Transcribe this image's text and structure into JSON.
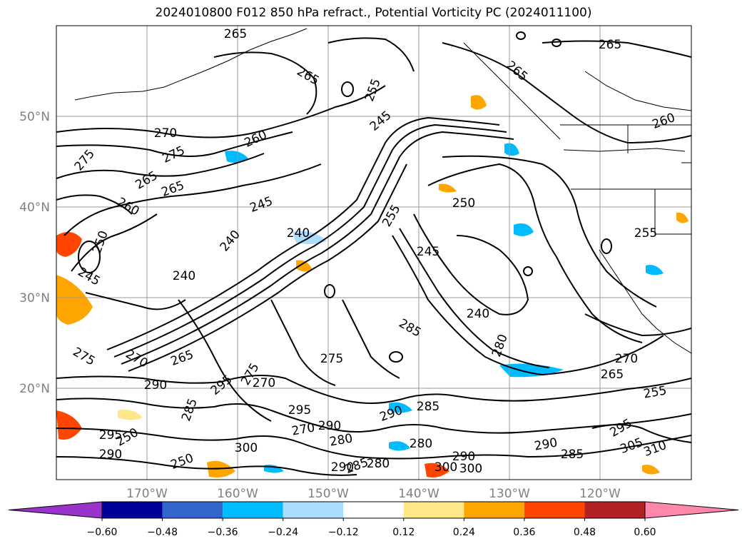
{
  "title": "2024010800 F012 850 hPa refract., Potential Vorticity PC (2024011100)",
  "lat_labels": [
    "50°N",
    "40°N",
    "30°N",
    "20°N"
  ],
  "lon_labels": [
    "170°W",
    "160°W",
    "150°W",
    "140°W",
    "130°W",
    "120°W"
  ],
  "contour_labels": [
    "265",
    "265",
    "265",
    "265",
    "255",
    "245",
    "260",
    "270",
    "260",
    "275",
    "275",
    "265",
    "265",
    "260",
    "250",
    "245",
    "245",
    "240",
    "240",
    "250",
    "245",
    "255",
    "240",
    "240",
    "285",
    "275",
    "270",
    "265",
    "270",
    "265",
    "270",
    "255",
    "280",
    "275",
    "270",
    "295",
    "290",
    "285",
    "295",
    "280",
    "290",
    "290",
    "285",
    "280",
    "290",
    "300",
    "295",
    "290",
    "295",
    "285",
    "300",
    "305",
    "310",
    "290",
    "300",
    "280",
    "285",
    "290",
    "275",
    "250",
    "250",
    "255"
  ],
  "colorbar": {
    "ticks": [
      "−0.60",
      "−0.48",
      "−0.36",
      "−0.24",
      "−0.12",
      "0.12",
      "0.24",
      "0.36",
      "0.48",
      "0.60"
    ],
    "colors": [
      "#9933cc",
      "#000099",
      "#3366cc",
      "#00bbff",
      "#aaddff",
      "#ffffff",
      "#ffe88a",
      "#ffa500",
      "#ff4500",
      "#b22222",
      "#ff88aa"
    ]
  }
}
